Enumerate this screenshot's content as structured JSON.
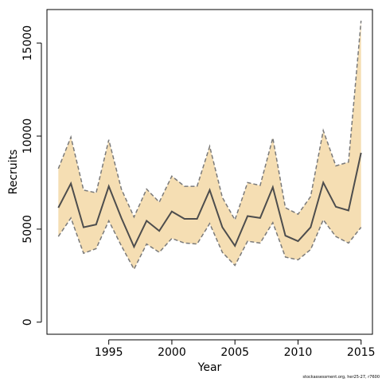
{
  "chart_data": {
    "type": "line",
    "title": "",
    "xlabel": "Year",
    "ylabel": "Recruits",
    "xlim": [
      1990.1,
      2015.9
    ],
    "ylim": [
      -650,
      16800
    ],
    "xticks": [
      1995,
      2000,
      2005,
      2010,
      2015
    ],
    "yticks": [
      0,
      5000,
      10000,
      15000
    ],
    "grid": false,
    "legend": "none",
    "x": [
      1991,
      1992,
      1993,
      1994,
      1995,
      1996,
      1997,
      1998,
      1999,
      2000,
      2001,
      2002,
      2003,
      2004,
      2005,
      2006,
      2007,
      2008,
      2009,
      2010,
      2011,
      2012,
      2013,
      2014,
      2015
    ],
    "series": [
      {
        "role": "estimate",
        "values": [
          6150,
          7450,
          5100,
          5250,
          7300,
          5600,
          4050,
          5450,
          4900,
          5950,
          5550,
          5550,
          7100,
          5100,
          4100,
          5700,
          5600,
          7250,
          4650,
          4350,
          5100,
          7500,
          6200,
          6000,
          9100
        ]
      },
      {
        "role": "lower",
        "values": [
          4600,
          5600,
          3700,
          3950,
          5450,
          4100,
          2850,
          4200,
          3750,
          4500,
          4250,
          4200,
          5300,
          3750,
          3050,
          4350,
          4250,
          5350,
          3500,
          3350,
          3900,
          5500,
          4600,
          4250,
          5100
        ]
      },
      {
        "role": "upper",
        "values": [
          8250,
          9950,
          7100,
          6950,
          9800,
          7150,
          5650,
          7150,
          6450,
          7850,
          7300,
          7300,
          9450,
          6700,
          5500,
          7500,
          7350,
          9900,
          6150,
          5800,
          6750,
          10300,
          8400,
          8600,
          16200
        ]
      }
    ],
    "colors": {
      "band": "#f5deb3",
      "estimate_line": "#4d4d4d",
      "bound_line": "#7a7a7a",
      "axis": "#000000"
    }
  },
  "footer": {
    "credit": "stockassessment.org, her25-27, r7600"
  }
}
